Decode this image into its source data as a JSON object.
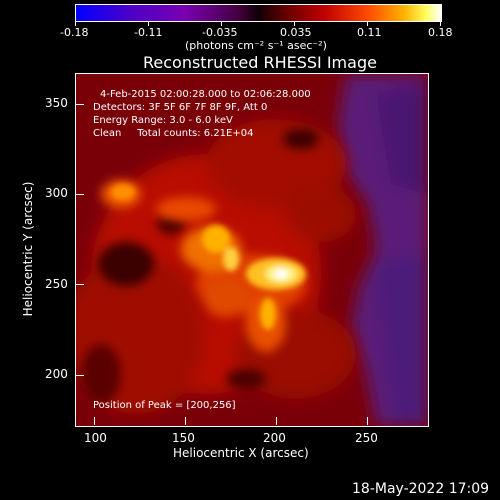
{
  "colorbar": {
    "tick_labels": [
      "-0.18",
      "-0.11",
      "-0.035",
      "0.035",
      "0.11",
      "0.18"
    ],
    "units_text": "(photons cm⁻² s⁻¹ asec⁻²)"
  },
  "plot": {
    "title": "Reconstructed RHESSI Image",
    "xlabel": "Heliocentric X (arcsec)",
    "ylabel": "Heliocentric Y (arcsec)",
    "x_ticks": [
      "100",
      "150",
      "200",
      "250"
    ],
    "y_ticks": [
      "200",
      "250",
      "300",
      "350"
    ]
  },
  "annotations": {
    "time_range": "4-Feb-2015 02:00:28.000 to 02:06:28.000",
    "detectors": "Detectors: 3F 5F 6F 7F 8F 9F, Att 0",
    "energy": "Energy Range: 3.0 - 6.0 keV",
    "clean": "Clean     Total counts: 6.21E+04",
    "peak": "Position of Peak = [200,256]"
  },
  "footer": {
    "date": "18-May-2022 17:09"
  },
  "colors": {
    "background": "#000000",
    "frame": "#ffffff",
    "colormap": "blue-purple-red-yellow-white"
  }
}
